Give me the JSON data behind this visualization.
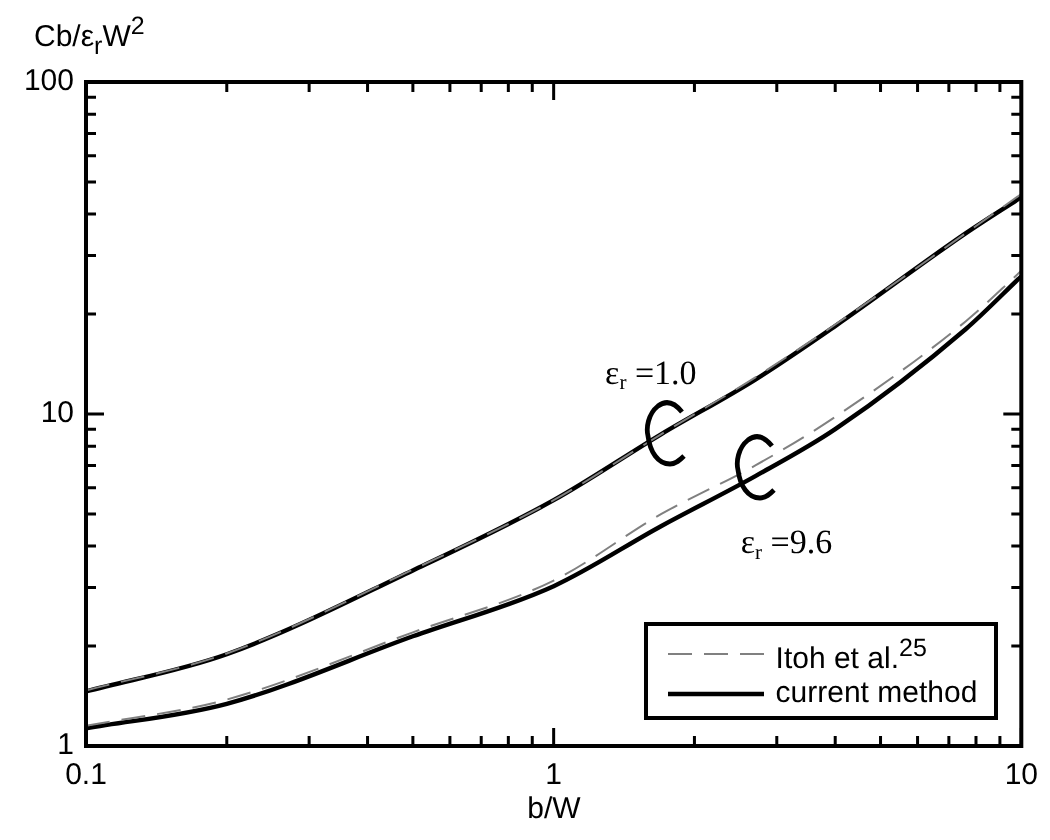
{
  "chart_data": {
    "type": "line",
    "xlabel": "b/W",
    "ylabel": "Cb/ε$_{r}$W$^{2}$",
    "log": "xy",
    "xlim": [
      0.1,
      10
    ],
    "ylim": [
      1,
      100
    ],
    "xticks": [
      0.1,
      {
        "value": 0.2,
        "label": null
      },
      {
        "value": 0.3,
        "label": null
      },
      {
        "value": 0.4,
        "label": null
      },
      {
        "value": 0.5,
        "label": null
      },
      {
        "value": 0.6,
        "label": null
      },
      {
        "value": 0.7,
        "label": null
      },
      {
        "value": 0.8,
        "label": null
      },
      {
        "value": 0.9,
        "label": null
      },
      1,
      {
        "value": 2,
        "label": null
      },
      {
        "value": 3,
        "label": null
      },
      {
        "value": 4,
        "label": null
      },
      {
        "value": 5,
        "label": null
      },
      {
        "value": 6,
        "label": null
      },
      {
        "value": 7,
        "label": null
      },
      {
        "value": 8,
        "label": null
      },
      {
        "value": 9,
        "label": null
      },
      10
    ],
    "yticks": [
      1,
      {
        "value": 2,
        "label": null
      },
      {
        "value": 3,
        "label": null
      },
      {
        "value": 4,
        "label": null
      },
      {
        "value": 5,
        "label": null
      },
      {
        "value": 6,
        "label": null
      },
      {
        "value": 7,
        "label": null
      },
      {
        "value": 8,
        "label": null
      },
      {
        "value": 9,
        "label": null
      },
      10,
      {
        "value": 20,
        "label": null
      },
      {
        "value": 30,
        "label": null
      },
      {
        "value": 40,
        "label": null
      },
      {
        "value": 50,
        "label": null
      },
      {
        "value": 60,
        "label": null
      },
      {
        "value": 70,
        "label": null
      },
      {
        "value": 80,
        "label": null
      },
      {
        "value": 90,
        "label": null
      },
      100
    ],
    "x": [
      0.1,
      0.2,
      0.5,
      1,
      1.7,
      2.7,
      4,
      7.6,
      10
    ],
    "series": [
      {
        "name": "Itoh et al.$^{25}$",
        "color": "#808080",
        "line_style": "dashed",
        "values": [
          1.47,
          1.9,
          3.4,
          5.5,
          8.7,
          12.9,
          18.6,
          35,
          46
        ]
      },
      {
        "name": "current method",
        "color": "#000000",
        "line_style": "solid",
        "values": [
          1.46,
          1.89,
          3.38,
          5.5,
          8.7,
          12.7,
          18.4,
          35,
          45
        ]
      },
      {
        "color": "#808080",
        "line_style": "dashed",
        "values": [
          1.15,
          1.38,
          2.2,
          3.15,
          5.0,
          7.0,
          9.8,
          19,
          27
        ]
      },
      {
        "color": "#000000",
        "line_style": "solid",
        "values": [
          1.13,
          1.34,
          2.14,
          3.03,
          4.6,
          6.5,
          9.0,
          18,
          26
        ]
      }
    ],
    "legend": "bottom right",
    "grid": false,
    "marker": "none",
    "annotations": [
      "ε$_{r}$ =1.0",
      "ε$_{r}$ =9.6"
    ]
  }
}
